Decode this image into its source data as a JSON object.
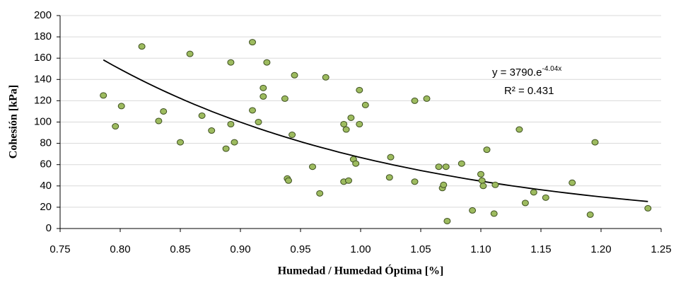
{
  "chart_data": {
    "type": "scatter",
    "x_label": "Humedad / Humedad Óptima [%]",
    "y_label": "Cohesión [kPa]",
    "series": [
      {
        "color": "#9dbb5f",
        "x": [
          0.786,
          0.801,
          0.796,
          0.818,
          0.836,
          0.832,
          0.85,
          0.858,
          0.868,
          0.876,
          0.888,
          0.892,
          0.892,
          0.895,
          0.91,
          0.91,
          0.915,
          0.919,
          0.919,
          0.922,
          0.937,
          0.939,
          0.94,
          0.943,
          0.945,
          0.96,
          0.966,
          0.971,
          0.986,
          0.986,
          0.988,
          0.99,
          0.992,
          0.994,
          0.996,
          0.999,
          0.999,
          1.004,
          1.024,
          1.025,
          1.045,
          1.045,
          1.055,
          1.065,
          1.068,
          1.069,
          1.071,
          1.072,
          1.084,
          1.093,
          1.1,
          1.101,
          1.102,
          1.105,
          1.111,
          1.112,
          1.132,
          1.137,
          1.144,
          1.154,
          1.176,
          1.191,
          1.195,
          1.239
        ],
        "values": [
          125,
          115,
          96,
          171,
          110,
          101,
          81,
          164,
          106,
          92,
          75,
          98,
          156,
          81,
          175,
          111,
          100,
          132,
          124,
          156,
          122,
          47,
          45,
          88,
          144,
          58,
          33,
          142,
          98,
          44,
          93,
          45,
          104,
          65,
          61,
          130,
          98,
          116,
          48,
          67,
          120,
          44,
          122,
          58,
          38,
          41,
          58,
          7,
          61,
          17,
          51,
          45,
          40,
          74,
          14,
          41,
          93,
          24,
          34,
          29,
          43,
          13,
          81,
          19
        ]
      }
    ],
    "trendline": {
      "a": 3790,
      "b": -4.04,
      "color": "#000000",
      "equation": "y = 3790.e",
      "exponent": "-4.04x",
      "r2": "R² = 0.431"
    },
    "xlim": [
      0.75,
      1.25
    ],
    "xticks": [
      0.75,
      {
        "value": 0.8,
        "label": "0.80"
      },
      0.85,
      {
        "value": 0.9,
        "label": "0.90"
      },
      0.95,
      {
        "value": 1.0,
        "label": "1.00"
      },
      1.05,
      {
        "value": 1.1,
        "label": "1.10"
      },
      1.15,
      {
        "value": 1.2,
        "label": "1.20"
      },
      1.25
    ],
    "ylim": [
      0,
      200
    ],
    "yticks": [
      0,
      20,
      40,
      60,
      80,
      100,
      120,
      140,
      160,
      180,
      200
    ],
    "grid": true
  }
}
